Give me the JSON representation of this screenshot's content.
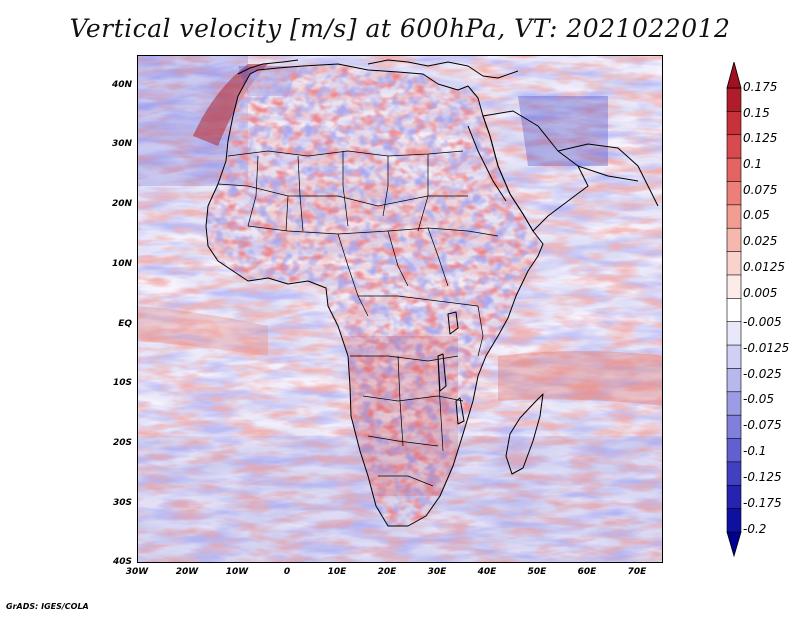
{
  "title": "Vertical velocity [m/s] at 600hPa, VT: 2021022012",
  "credit": "GrADS: IGES/COLA",
  "map": {
    "lon_range": [
      -30,
      75
    ],
    "lat_range": [
      -40,
      45
    ],
    "lat_labels": [
      "40N",
      "30N",
      "20N",
      "10N",
      "EQ",
      "10S",
      "20S",
      "30S",
      "40S"
    ],
    "lat_values": [
      40,
      30,
      20,
      10,
      0,
      -10,
      -20,
      -30,
      -40
    ],
    "lon_labels": [
      "30W",
      "20W",
      "10W",
      "0",
      "10E",
      "20E",
      "30E",
      "40E",
      "50E",
      "60E",
      "70E"
    ],
    "lon_values": [
      -30,
      -20,
      -10,
      0,
      10,
      20,
      30,
      40,
      50,
      60,
      70
    ]
  },
  "colorbar": {
    "labels": [
      "0.175",
      "0.15",
      "0.125",
      "0.1",
      "0.075",
      "0.05",
      "0.025",
      "0.0125",
      "0.005",
      "-0.005",
      "-0.0125",
      "-0.025",
      "-0.05",
      "-0.075",
      "-0.1",
      "-0.125",
      "-0.175",
      "-0.2"
    ],
    "colors": [
      "#b01c2a",
      "#c8303a",
      "#d84a4e",
      "#e46462",
      "#ec8078",
      "#f29c92",
      "#f6b8ae",
      "#fad2cc",
      "#fcebe8",
      "#ffffff",
      "#e8e8fa",
      "#d0d0f4",
      "#b8b8ee",
      "#9c9ce6",
      "#8080dc",
      "#6060d0",
      "#4040c0",
      "#2424b0",
      "#1010a0"
    ],
    "top_color": "#a01020",
    "bottom_color": "#000090"
  }
}
